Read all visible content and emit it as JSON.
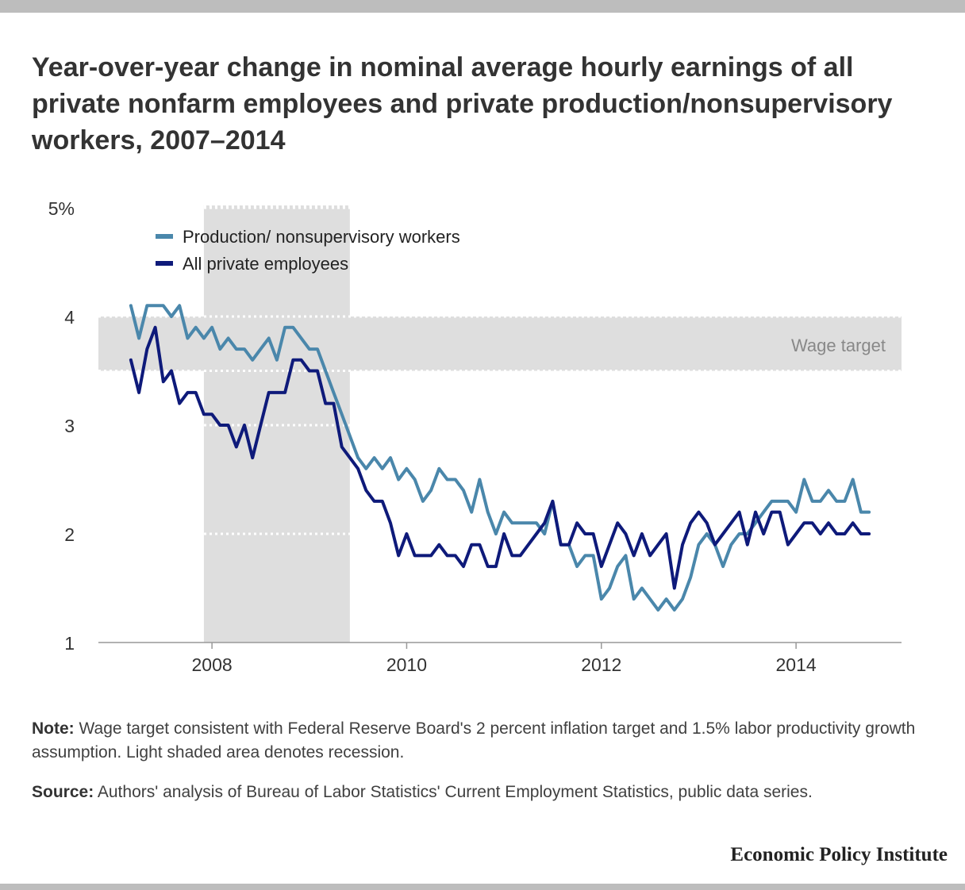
{
  "title": "Year-over-year change in nominal average hourly earnings of all private nonfarm employees and private production/nonsupervisory workers, 2007–2014",
  "notes": {
    "note_label": "Note:",
    "note_text": "Wage target consistent with Federal Reserve Board's 2 percent inflation target and 1.5% labor productivity  growth assumption.  Light shaded area denotes recession.",
    "source_label": "Source:",
    "source_text": "Authors' analysis of Bureau of Labor Statistics' Current Employment Statistics, public data series."
  },
  "brand": "Economic Policy Institute",
  "chart_data": {
    "type": "line",
    "title": "",
    "xlabel": "",
    "ylabel": "",
    "x_range": [
      "2006-11",
      "2015-02"
    ],
    "ylim": [
      1,
      5
    ],
    "y_ticks": [
      1,
      2,
      3,
      4,
      5
    ],
    "y_tick_labels": [
      "1",
      "2",
      "3",
      "4",
      "5%"
    ],
    "x_ticks": [
      "2008-01",
      "2010-01",
      "2012-01",
      "2014-01"
    ],
    "x_tick_labels": [
      "2008",
      "2010",
      "2012",
      "2014"
    ],
    "grid": "dotted",
    "legend_position": "top-left",
    "recession": {
      "start": "2007-12",
      "end": "2009-06"
    },
    "wage_target": {
      "label": "Wage target",
      "low": 3.5,
      "high": 4.0
    },
    "x": [
      "2007-03",
      "2007-04",
      "2007-05",
      "2007-06",
      "2007-07",
      "2007-08",
      "2007-09",
      "2007-10",
      "2007-11",
      "2007-12",
      "2008-01",
      "2008-02",
      "2008-03",
      "2008-04",
      "2008-05",
      "2008-06",
      "2008-07",
      "2008-08",
      "2008-09",
      "2008-10",
      "2008-11",
      "2008-12",
      "2009-01",
      "2009-02",
      "2009-03",
      "2009-04",
      "2009-05",
      "2009-06",
      "2009-07",
      "2009-08",
      "2009-09",
      "2009-10",
      "2009-11",
      "2009-12",
      "2010-01",
      "2010-02",
      "2010-03",
      "2010-04",
      "2010-05",
      "2010-06",
      "2010-07",
      "2010-08",
      "2010-09",
      "2010-10",
      "2010-11",
      "2010-12",
      "2011-01",
      "2011-02",
      "2011-03",
      "2011-04",
      "2011-05",
      "2011-06",
      "2011-07",
      "2011-08",
      "2011-09",
      "2011-10",
      "2011-11",
      "2011-12",
      "2012-01",
      "2012-02",
      "2012-03",
      "2012-04",
      "2012-05",
      "2012-06",
      "2012-07",
      "2012-08",
      "2012-09",
      "2012-10",
      "2012-11",
      "2012-12",
      "2013-01",
      "2013-02",
      "2013-03",
      "2013-04",
      "2013-05",
      "2013-06",
      "2013-07",
      "2013-08",
      "2013-09",
      "2013-10",
      "2013-11",
      "2013-12",
      "2014-01",
      "2014-02",
      "2014-03",
      "2014-04",
      "2014-05",
      "2014-06",
      "2014-07",
      "2014-08",
      "2014-09",
      "2014-10"
    ],
    "series": [
      {
        "name": "Production/ nonsupervisory workers",
        "color": "#4a87ab",
        "values": [
          4.1,
          3.8,
          4.1,
          4.1,
          4.1,
          4.0,
          4.1,
          3.8,
          3.9,
          3.8,
          3.9,
          3.7,
          3.8,
          3.7,
          3.7,
          3.6,
          3.7,
          3.8,
          3.6,
          3.9,
          3.9,
          3.8,
          3.7,
          3.7,
          3.5,
          3.3,
          3.1,
          2.9,
          2.7,
          2.6,
          2.7,
          2.6,
          2.7,
          2.5,
          2.6,
          2.5,
          2.3,
          2.4,
          2.6,
          2.5,
          2.5,
          2.4,
          2.2,
          2.5,
          2.2,
          2.0,
          2.2,
          2.1,
          2.1,
          2.1,
          2.1,
          2.0,
          2.3,
          1.9,
          1.9,
          1.7,
          1.8,
          1.8,
          1.4,
          1.5,
          1.7,
          1.8,
          1.4,
          1.5,
          1.4,
          1.3,
          1.4,
          1.3,
          1.4,
          1.6,
          1.9,
          2.0,
          1.9,
          1.7,
          1.9,
          2.0,
          2.0,
          2.1,
          2.2,
          2.3,
          2.3,
          2.3,
          2.2,
          2.5,
          2.3,
          2.3,
          2.4,
          2.3,
          2.3,
          2.5,
          2.2,
          2.2
        ]
      },
      {
        "name": "All private employees",
        "color": "#0e1a7a",
        "values": [
          3.6,
          3.3,
          3.7,
          3.9,
          3.4,
          3.5,
          3.2,
          3.3,
          3.3,
          3.1,
          3.1,
          3.0,
          3.0,
          2.8,
          3.0,
          2.7,
          3.0,
          3.3,
          3.3,
          3.3,
          3.6,
          3.6,
          3.5,
          3.5,
          3.2,
          3.2,
          2.8,
          2.7,
          2.6,
          2.4,
          2.3,
          2.3,
          2.1,
          1.8,
          2.0,
          1.8,
          1.8,
          1.8,
          1.9,
          1.8,
          1.8,
          1.7,
          1.9,
          1.9,
          1.7,
          1.7,
          2.0,
          1.8,
          1.8,
          1.9,
          2.0,
          2.1,
          2.3,
          1.9,
          1.9,
          2.1,
          2.0,
          2.0,
          1.7,
          1.9,
          2.1,
          2.0,
          1.8,
          2.0,
          1.8,
          1.9,
          2.0,
          1.5,
          1.9,
          2.1,
          2.2,
          2.1,
          1.9,
          2.0,
          2.1,
          2.2,
          1.9,
          2.2,
          2.0,
          2.2,
          2.2,
          1.9,
          2.0,
          2.1,
          2.1,
          2.0,
          2.1,
          2.0,
          2.0,
          2.1,
          2.0,
          2.0
        ]
      }
    ]
  }
}
